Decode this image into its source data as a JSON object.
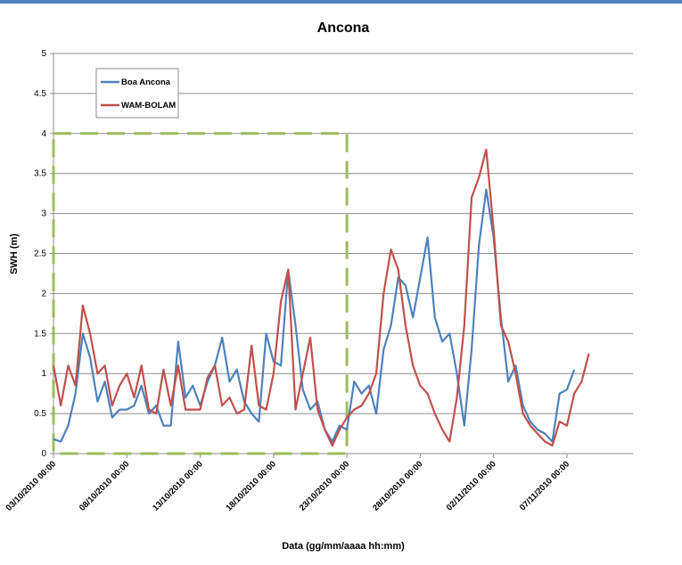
{
  "chart_data": {
    "type": "line",
    "title": "Ancona",
    "x_label": "Data (gg/mm/aaaa hh:mm)",
    "y_label": "SWH (m)",
    "x": [
      "03/10/2010 00:00",
      "03/10/2010 12:00",
      "04/10/2010 00:00",
      "04/10/2010 12:00",
      "05/10/2010 00:00",
      "05/10/2010 12:00",
      "06/10/2010 00:00",
      "06/10/2010 12:00",
      "07/10/2010 00:00",
      "07/10/2010 12:00",
      "08/10/2010 00:00",
      "08/10/2010 12:00",
      "09/10/2010 00:00",
      "09/10/2010 12:00",
      "10/10/2010 00:00",
      "10/10/2010 12:00",
      "11/10/2010 00:00",
      "11/10/2010 12:00",
      "12/10/2010 00:00",
      "12/10/2010 12:00",
      "13/10/2010 00:00",
      "13/10/2010 12:00",
      "14/10/2010 00:00",
      "14/10/2010 12:00",
      "15/10/2010 00:00",
      "15/10/2010 12:00",
      "16/10/2010 00:00",
      "16/10/2010 12:00",
      "17/10/2010 00:00",
      "17/10/2010 12:00",
      "18/10/2010 00:00",
      "18/10/2010 12:00",
      "19/10/2010 00:00",
      "19/10/2010 12:00",
      "20/10/2010 00:00",
      "20/10/2010 12:00",
      "21/10/2010 00:00",
      "21/10/2010 12:00",
      "22/10/2010 00:00",
      "22/10/2010 12:00",
      "23/10/2010 00:00",
      "23/10/2010 12:00",
      "24/10/2010 00:00",
      "24/10/2010 12:00",
      "25/10/2010 00:00",
      "25/10/2010 12:00",
      "26/10/2010 00:00",
      "26/10/2010 12:00",
      "27/10/2010 00:00",
      "27/10/2010 12:00",
      "28/10/2010 00:00",
      "28/10/2010 12:00",
      "29/10/2010 00:00",
      "29/10/2010 12:00",
      "30/10/2010 00:00",
      "30/10/2010 12:00",
      "31/10/2010 00:00",
      "31/10/2010 12:00",
      "01/11/2010 00:00",
      "01/11/2010 12:00",
      "02/11/2010 00:00",
      "02/11/2010 12:00",
      "03/11/2010 00:00",
      "03/11/2010 12:00",
      "04/11/2010 00:00",
      "04/11/2010 12:00",
      "05/11/2010 00:00",
      "05/11/2010 12:00",
      "06/11/2010 00:00",
      "06/11/2010 12:00",
      "07/11/2010 00:00",
      "07/11/2010 12:00",
      "08/11/2010 00:00",
      "08/11/2010 12:00"
    ],
    "series": [
      {
        "name": "Boa Ancona",
        "color": "#4f81bd",
        "values": [
          0.18,
          0.15,
          0.35,
          0.75,
          1.5,
          1.2,
          0.65,
          0.9,
          0.45,
          0.55,
          0.55,
          0.6,
          0.85,
          0.5,
          0.6,
          0.35,
          0.35,
          1.4,
          0.7,
          0.85,
          0.6,
          0.9,
          1.1,
          1.45,
          0.9,
          1.05,
          0.65,
          0.5,
          0.4,
          1.5,
          1.15,
          1.1,
          2.3,
          1.6,
          0.8,
          0.55,
          0.65,
          0.3,
          0.15,
          0.35,
          0.3,
          0.9,
          0.75,
          0.85,
          0.5,
          1.3,
          1.6,
          2.2,
          2.1,
          1.7,
          2.2,
          2.7,
          1.7,
          1.4,
          1.5,
          1.0,
          0.35,
          1.3,
          2.6,
          3.3,
          2.7,
          1.7,
          0.9,
          1.1,
          0.6,
          0.4,
          0.3,
          0.25,
          0.15,
          0.75,
          0.8,
          1.05,
          null,
          null
        ]
      },
      {
        "name": "WAM-BOLAM",
        "color": "#c0504d",
        "values": [
          1.1,
          0.6,
          1.1,
          0.85,
          1.85,
          1.5,
          1.0,
          1.1,
          0.6,
          0.85,
          1.0,
          0.7,
          1.1,
          0.55,
          0.5,
          1.05,
          0.6,
          1.1,
          0.55,
          0.55,
          0.55,
          0.95,
          1.1,
          0.6,
          0.7,
          0.5,
          0.55,
          1.35,
          0.6,
          0.55,
          1.0,
          1.9,
          2.3,
          0.55,
          1.0,
          1.45,
          0.55,
          0.3,
          0.1,
          0.3,
          0.45,
          0.55,
          0.6,
          0.75,
          1.0,
          2.0,
          2.55,
          2.3,
          1.6,
          1.1,
          0.85,
          0.75,
          0.5,
          0.3,
          0.15,
          0.7,
          1.6,
          3.2,
          3.45,
          3.8,
          2.8,
          1.6,
          1.4,
          1.0,
          0.5,
          0.35,
          0.25,
          0.15,
          0.1,
          0.4,
          0.35,
          0.75,
          0.9,
          1.25
        ]
      }
    ],
    "xlim": [
      "03/10/2010 00:00",
      "11/11/2010 12:00"
    ],
    "xticks": [
      "03/10/2010 00:00",
      "08/10/2010 00:00",
      "13/10/2010 00:00",
      "18/10/2010 00:00",
      "23/10/2010 00:00",
      "28/10/2010 00:00",
      "02/11/2010 00:00",
      "07/11/2010 00:00"
    ],
    "ylim": [
      0,
      5
    ],
    "yticks": [
      0,
      0.5,
      1,
      1.5,
      2,
      2.5,
      3,
      3.5,
      4,
      4.5,
      5
    ],
    "grid": true,
    "highlight": {
      "color": "#9bbb59",
      "xlim": [
        "03/10/2010 00:00",
        "23/10/2010 00:00"
      ],
      "ylim": [
        0,
        4
      ]
    }
  }
}
